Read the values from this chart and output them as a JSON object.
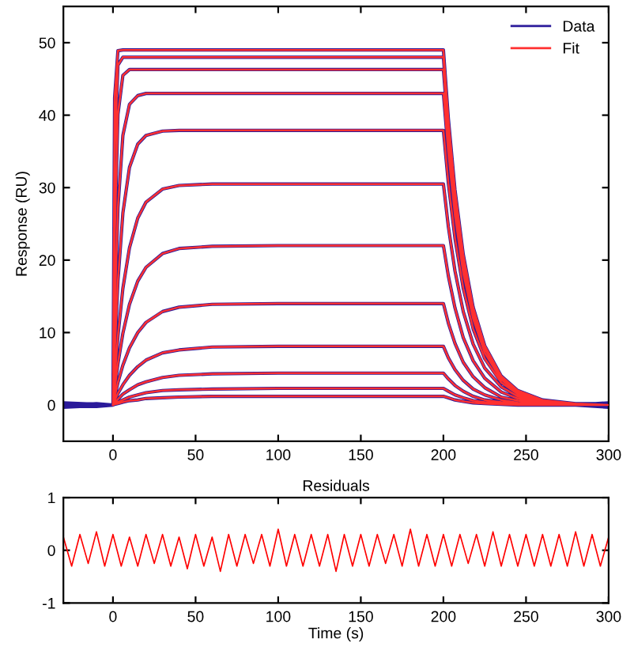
{
  "chart_data": [
    {
      "type": "line",
      "ylabel": "Response (RU)",
      "xlim": [
        -30,
        300
      ],
      "ylim": [
        -5,
        55
      ],
      "xticks": [
        0,
        50,
        100,
        150,
        200,
        250,
        300
      ],
      "yticks": [
        0,
        10,
        20,
        30,
        40,
        50
      ],
      "legend": "top right",
      "grid": false,
      "series": [
        {
          "name": "Data",
          "color": "#2a1a9a",
          "x": [
            -30,
            -10,
            0,
            1,
            3,
            6,
            10,
            15,
            20,
            30,
            40,
            60,
            100,
            150,
            200,
            203,
            207,
            212,
            218,
            225,
            235,
            245,
            260,
            280,
            300,
            null,
            -30,
            -10,
            0,
            1,
            3,
            6,
            10,
            15,
            20,
            30,
            40,
            60,
            100,
            150,
            200,
            203,
            207,
            212,
            218,
            225,
            235,
            245,
            260,
            280,
            300,
            null,
            -30,
            -10,
            0,
            1,
            3,
            6,
            10,
            15,
            20,
            30,
            40,
            60,
            100,
            150,
            200,
            203,
            207,
            212,
            218,
            225,
            235,
            245,
            260,
            280,
            300,
            null,
            -30,
            -10,
            0,
            1,
            3,
            6,
            10,
            15,
            20,
            30,
            40,
            60,
            100,
            150,
            200,
            203,
            207,
            212,
            218,
            225,
            235,
            245,
            260,
            280,
            300,
            null,
            -30,
            -10,
            0,
            1,
            3,
            6,
            10,
            15,
            20,
            30,
            40,
            60,
            100,
            150,
            200,
            203,
            207,
            212,
            218,
            225,
            235,
            245,
            260,
            280,
            300,
            null,
            -30,
            -10,
            0,
            1,
            3,
            6,
            10,
            15,
            20,
            30,
            40,
            60,
            100,
            150,
            200,
            203,
            207,
            212,
            218,
            225,
            235,
            245,
            260,
            280,
            300,
            null,
            -30,
            -10,
            0,
            1,
            3,
            6,
            10,
            15,
            20,
            30,
            40,
            60,
            100,
            150,
            200,
            203,
            207,
            212,
            218,
            225,
            235,
            245,
            260,
            280,
            300,
            null,
            -30,
            -10,
            0,
            1,
            3,
            6,
            10,
            15,
            20,
            30,
            40,
            60,
            100,
            150,
            200,
            203,
            207,
            212,
            218,
            225,
            235,
            245,
            260,
            280,
            300,
            null,
            -30,
            -10,
            0,
            1,
            3,
            6,
            10,
            15,
            20,
            30,
            40,
            60,
            100,
            150,
            200,
            203,
            207,
            212,
            218,
            225,
            235,
            245,
            260,
            280,
            300,
            null,
            -30,
            -10,
            0,
            1,
            3,
            6,
            10,
            15,
            20,
            30,
            40,
            60,
            100,
            150,
            200,
            203,
            207,
            212,
            218,
            225,
            235,
            245,
            260,
            280,
            300,
            null,
            -30,
            -10,
            0,
            1,
            3,
            6,
            10,
            15,
            20,
            30,
            40,
            60,
            100,
            150,
            200,
            203,
            207,
            212,
            218,
            225,
            235,
            245,
            260,
            280,
            300,
            null,
            -30,
            -10,
            0,
            1,
            3,
            6,
            10,
            15,
            20,
            30,
            40,
            60,
            100,
            150,
            200,
            203,
            207,
            212,
            218,
            225,
            235,
            245,
            260,
            280,
            300
          ],
          "values": [
            0.2,
            -0.1,
            0,
            42.4,
            48.9,
            49,
            49,
            49,
            49,
            49,
            49,
            49,
            49,
            49,
            49,
            39.5,
            29.7,
            20.8,
            13.5,
            8.2,
            4.0,
            2.0,
            0.7,
            0.2,
            0.1,
            null,
            -0.1,
            0.2,
            0,
            34.2,
            46.9,
            48,
            48,
            48,
            48,
            48,
            48,
            48,
            48,
            48,
            48,
            38.7,
            29.1,
            20.4,
            13.2,
            8.1,
            3.9,
            1.9,
            0.7,
            0.2,
            -0.1,
            null,
            0.1,
            -0.2,
            0,
            22.5,
            40.1,
            45.5,
            46.3,
            46.3,
            46.3,
            46.3,
            46.3,
            46.3,
            46.3,
            46.3,
            46.3,
            37.4,
            28.1,
            19.6,
            12.8,
            7.8,
            3.8,
            1.9,
            0.6,
            0.2,
            0.2,
            null,
            -0.2,
            0.1,
            0,
            12.2,
            27.2,
            37.2,
            41.5,
            42.7,
            43,
            43,
            43,
            43,
            43,
            43,
            43,
            34.7,
            26.1,
            18.2,
            11.9,
            7.2,
            3.5,
            1.7,
            0.6,
            0.1,
            -0.2,
            null,
            0.1,
            0.1,
            0,
            6.9,
            17.1,
            26.5,
            32.8,
            36.0,
            37.2,
            37.8,
            37.9,
            37.9,
            37.9,
            37.9,
            37.9,
            30.6,
            23.0,
            16.1,
            10.5,
            6.4,
            3.1,
            1.5,
            0.5,
            0.1,
            0.1,
            null,
            -0.1,
            -0.1,
            0,
            3.6,
            9.5,
            16.1,
            21.7,
            25.8,
            28.0,
            29.8,
            30.3,
            30.5,
            30.5,
            30.5,
            30.5,
            24.6,
            18.5,
            12.9,
            8.4,
            5.1,
            2.5,
            1.2,
            0.4,
            0.1,
            -0.1,
            null,
            0.2,
            0.0,
            0,
            2.1,
            5.7,
            9.9,
            13.9,
            17.1,
            19.0,
            20.9,
            21.6,
            21.9,
            22,
            22,
            22,
            17.8,
            13.4,
            9.3,
            6.1,
            3.7,
            1.8,
            0.9,
            0.3,
            0.1,
            0.2,
            null,
            -0.2,
            0.0,
            0,
            1.1,
            3.1,
            5.5,
            7.9,
            10.0,
            11.4,
            12.9,
            13.5,
            13.9,
            14,
            14,
            14,
            11.3,
            8.5,
            5.9,
            3.9,
            2.4,
            1.1,
            0.6,
            0.2,
            0.0,
            -0.2,
            null,
            0.0,
            0.2,
            0,
            0.6,
            1.6,
            2.8,
            4.1,
            5.3,
            6.2,
            7.2,
            7.6,
            8.0,
            8.1,
            8.1,
            8.1,
            6.5,
            4.9,
            3.4,
            2.2,
            1.4,
            0.7,
            0.3,
            0.1,
            0.0,
            0.0,
            null,
            0.0,
            -0.2,
            0,
            0.3,
            0.8,
            1.5,
            2.1,
            2.8,
            3.2,
            3.8,
            4.1,
            4.3,
            4.4,
            4.4,
            4.4,
            3.6,
            2.7,
            1.9,
            1.2,
            0.7,
            0.4,
            0.2,
            0.1,
            0.0,
            0.3,
            null,
            0.3,
            0.1,
            0,
            0.1,
            0.4,
            0.7,
            1.1,
            1.4,
            1.7,
            2.0,
            2.1,
            2.2,
            2.3,
            2.3,
            2.3,
            1.9,
            1.4,
            1.0,
            0.6,
            0.4,
            0.2,
            0.1,
            0.0,
            0.0,
            -0.3,
            null,
            -0.3,
            -0.1,
            0,
            0.1,
            0.2,
            0.4,
            0.6,
            0.7,
            0.9,
            1.0,
            1.1,
            1.2,
            1.2,
            1.2,
            1.2,
            1.0,
            0.7,
            0.5,
            0.3,
            0.2,
            0.1,
            0.0,
            0.0,
            0.0,
            0.3
          ]
        },
        {
          "name": "Fit",
          "color": "#ff3030",
          "x": [
            0,
            1,
            3,
            6,
            10,
            15,
            20,
            30,
            40,
            60,
            100,
            150,
            200,
            203,
            207,
            212,
            218,
            225,
            235,
            245,
            260,
            280,
            300,
            null,
            0,
            1,
            3,
            6,
            10,
            15,
            20,
            30,
            40,
            60,
            100,
            150,
            200,
            203,
            207,
            212,
            218,
            225,
            235,
            245,
            260,
            280,
            300,
            null,
            0,
            1,
            3,
            6,
            10,
            15,
            20,
            30,
            40,
            60,
            100,
            150,
            200,
            203,
            207,
            212,
            218,
            225,
            235,
            245,
            260,
            280,
            300,
            null,
            0,
            1,
            3,
            6,
            10,
            15,
            20,
            30,
            40,
            60,
            100,
            150,
            200,
            203,
            207,
            212,
            218,
            225,
            235,
            245,
            260,
            280,
            300,
            null,
            0,
            1,
            3,
            6,
            10,
            15,
            20,
            30,
            40,
            60,
            100,
            150,
            200,
            203,
            207,
            212,
            218,
            225,
            235,
            245,
            260,
            280,
            300,
            null,
            0,
            1,
            3,
            6,
            10,
            15,
            20,
            30,
            40,
            60,
            100,
            150,
            200,
            203,
            207,
            212,
            218,
            225,
            235,
            245,
            260,
            280,
            300,
            null,
            0,
            1,
            3,
            6,
            10,
            15,
            20,
            30,
            40,
            60,
            100,
            150,
            200,
            203,
            207,
            212,
            218,
            225,
            235,
            245,
            260,
            280,
            300,
            null,
            0,
            1,
            3,
            6,
            10,
            15,
            20,
            30,
            40,
            60,
            100,
            150,
            200,
            203,
            207,
            212,
            218,
            225,
            235,
            245,
            260,
            280,
            300,
            null,
            0,
            1,
            3,
            6,
            10,
            15,
            20,
            30,
            40,
            60,
            100,
            150,
            200,
            203,
            207,
            212,
            218,
            225,
            235,
            245,
            260,
            280,
            300,
            null,
            0,
            1,
            3,
            6,
            10,
            15,
            20,
            30,
            40,
            60,
            100,
            150,
            200,
            203,
            207,
            212,
            218,
            225,
            235,
            245,
            260,
            280,
            300,
            null,
            0,
            1,
            3,
            6,
            10,
            15,
            20,
            30,
            40,
            60,
            100,
            150,
            200,
            203,
            207,
            212,
            218,
            225,
            235,
            245,
            260,
            280,
            300,
            null,
            0,
            1,
            3,
            6,
            10,
            15,
            20,
            30,
            40,
            60,
            100,
            150,
            200,
            203,
            207,
            212,
            218,
            225,
            235,
            245,
            260,
            280,
            300
          ],
          "values": [
            0,
            42.4,
            48.9,
            49,
            49,
            49,
            49,
            49,
            49,
            49,
            49,
            49,
            49,
            39.5,
            29.7,
            20.8,
            13.5,
            8.2,
            4.0,
            2.0,
            0.7,
            0.2,
            0.0,
            null,
            0,
            34.2,
            46.9,
            48,
            48,
            48,
            48,
            48,
            48,
            48,
            48,
            48,
            48,
            38.7,
            29.1,
            20.4,
            13.2,
            8.1,
            3.9,
            1.9,
            0.7,
            0.2,
            0.0,
            null,
            0,
            22.5,
            40.1,
            45.5,
            46.3,
            46.3,
            46.3,
            46.3,
            46.3,
            46.3,
            46.3,
            46.3,
            46.3,
            37.4,
            28.1,
            19.6,
            12.8,
            7.8,
            3.8,
            1.9,
            0.6,
            0.2,
            0.0,
            null,
            0,
            12.2,
            27.2,
            37.2,
            41.5,
            42.7,
            43,
            43,
            43,
            43,
            43,
            43,
            43,
            34.7,
            26.1,
            18.2,
            11.9,
            7.2,
            3.5,
            1.7,
            0.6,
            0.1,
            0.0,
            null,
            0,
            6.9,
            17.1,
            26.5,
            32.8,
            36.0,
            37.2,
            37.8,
            37.9,
            37.9,
            37.9,
            37.9,
            37.9,
            30.6,
            23.0,
            16.1,
            10.5,
            6.4,
            3.1,
            1.5,
            0.5,
            0.1,
            0.0,
            null,
            0,
            3.6,
            9.5,
            16.1,
            21.7,
            25.8,
            28.0,
            29.8,
            30.3,
            30.5,
            30.5,
            30.5,
            30.5,
            24.6,
            18.5,
            12.9,
            8.4,
            5.1,
            2.5,
            1.2,
            0.4,
            0.1,
            0.0,
            null,
            0,
            2.1,
            5.7,
            9.9,
            13.9,
            17.1,
            19.0,
            20.9,
            21.6,
            21.9,
            22,
            22,
            22,
            17.8,
            13.4,
            9.3,
            6.1,
            3.7,
            1.8,
            0.9,
            0.3,
            0.1,
            0.0,
            null,
            0,
            1.1,
            3.1,
            5.5,
            7.9,
            10.0,
            11.4,
            12.9,
            13.5,
            13.9,
            14,
            14,
            14,
            11.3,
            8.5,
            5.9,
            3.9,
            2.4,
            1.1,
            0.6,
            0.2,
            0.0,
            0.0,
            null,
            0,
            0.6,
            1.6,
            2.8,
            4.1,
            5.3,
            6.2,
            7.2,
            7.6,
            8.0,
            8.1,
            8.1,
            8.1,
            6.5,
            4.9,
            3.4,
            2.2,
            1.4,
            0.7,
            0.3,
            0.1,
            0.0,
            0.0,
            null,
            0,
            0.3,
            0.8,
            1.5,
            2.1,
            2.8,
            3.2,
            3.8,
            4.1,
            4.3,
            4.4,
            4.4,
            4.4,
            3.6,
            2.7,
            1.9,
            1.2,
            0.7,
            0.4,
            0.2,
            0.1,
            0.0,
            0.0,
            null,
            0,
            0.1,
            0.4,
            0.7,
            1.1,
            1.4,
            1.7,
            2.0,
            2.1,
            2.2,
            2.3,
            2.3,
            2.3,
            1.9,
            1.4,
            1.0,
            0.6,
            0.4,
            0.2,
            0.1,
            0.0,
            0.0,
            0.0,
            null,
            0,
            0.1,
            0.2,
            0.4,
            0.6,
            0.7,
            0.9,
            1.0,
            1.1,
            1.2,
            1.2,
            1.2,
            1.2,
            1.0,
            0.7,
            0.5,
            0.3,
            0.2,
            0.1,
            0.0,
            0.0,
            0.0,
            0.0
          ]
        }
      ]
    },
    {
      "type": "line",
      "title": "Residuals",
      "xlabel": "Time (s)",
      "xlim": [
        -30,
        300
      ],
      "ylim": [
        -1,
        1
      ],
      "xticks": [
        0,
        50,
        100,
        150,
        200,
        250,
        300
      ],
      "yticks": [
        -1,
        0,
        1
      ],
      "grid": false,
      "x": [
        -30,
        -25,
        -20,
        -15,
        -10,
        -5,
        0,
        5,
        10,
        15,
        20,
        25,
        30,
        35,
        40,
        45,
        50,
        55,
        60,
        65,
        70,
        75,
        80,
        85,
        90,
        95,
        100,
        105,
        110,
        115,
        120,
        125,
        130,
        135,
        140,
        145,
        150,
        155,
        160,
        165,
        170,
        175,
        180,
        185,
        190,
        195,
        200,
        205,
        210,
        215,
        220,
        225,
        230,
        235,
        240,
        245,
        250,
        255,
        260,
        265,
        270,
        275,
        280,
        285,
        290,
        295,
        300
      ],
      "series": [
        {
          "color": "#ff0000",
          "values": [
            0.25,
            -0.3,
            0.3,
            -0.25,
            0.35,
            -0.3,
            0.3,
            -0.3,
            0.25,
            -0.3,
            0.3,
            -0.25,
            0.3,
            -0.3,
            0.25,
            -0.35,
            0.3,
            -0.3,
            0.25,
            -0.4,
            0.3,
            -0.3,
            0.3,
            -0.25,
            0.3,
            -0.3,
            0.4,
            -0.3,
            0.3,
            -0.3,
            0.3,
            -0.3,
            0.3,
            -0.4,
            0.3,
            -0.3,
            0.3,
            -0.3,
            0.3,
            -0.25,
            0.3,
            -0.3,
            0.4,
            -0.3,
            0.3,
            -0.3,
            0.3,
            -0.3,
            0.3,
            -0.25,
            0.3,
            -0.3,
            0.35,
            -0.3,
            0.3,
            -0.3,
            0.3,
            -0.3,
            0.3,
            -0.3,
            0.3,
            -0.3,
            0.35,
            -0.3,
            0.3,
            -0.3,
            0.25
          ]
        }
      ]
    }
  ]
}
